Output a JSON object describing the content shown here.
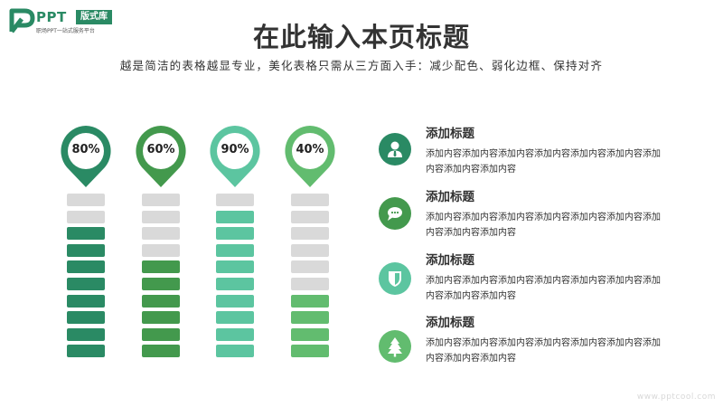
{
  "logo": {
    "brand": "PPT",
    "badge": "版式库",
    "tagline": "职场PPT一站式服务平台",
    "color": "#2a8a64"
  },
  "title": "在此输入本页标题",
  "subtitle": "越是简洁的表格越显专业，美化表格只需从三方面入手：减少配色、弱化边框、保持对齐",
  "chart_data": {
    "type": "bar",
    "categories": [
      "",
      "",
      "",
      ""
    ],
    "values": [
      80,
      60,
      90,
      40
    ],
    "labels": [
      "80%",
      "60%",
      "90%",
      "40%"
    ],
    "segments": 10,
    "ylim": [
      0,
      100
    ],
    "colors": [
      "#2a8a64",
      "#43994d",
      "#5cc5a0",
      "#62bc6f"
    ],
    "empty_color": "#d9d9d9"
  },
  "items": [
    {
      "title": "添加标题",
      "text": "添加内容添加内容添加内容添加内容添加内容添加内容添加内容添加内容添加内容",
      "icon": "user-tie-icon",
      "color": "#2a8a64"
    },
    {
      "title": "添加标题",
      "text": "添加内容添加内容添加内容添加内容添加内容添加内容添加内容添加内容添加内容",
      "icon": "chat-bubble-icon",
      "color": "#43994d"
    },
    {
      "title": "添加标题",
      "text": "添加内容添加内容添加内容添加内容添加内容添加内容添加内容添加内容添加内容",
      "icon": "shield-icon",
      "color": "#5cc5a0"
    },
    {
      "title": "添加标题",
      "text": "添加内容添加内容添加内容添加内容添加内容添加内容添加内容添加内容添加内容",
      "icon": "tree-icon",
      "color": "#62bc6f"
    }
  ],
  "watermark": "www.pptcool.com"
}
